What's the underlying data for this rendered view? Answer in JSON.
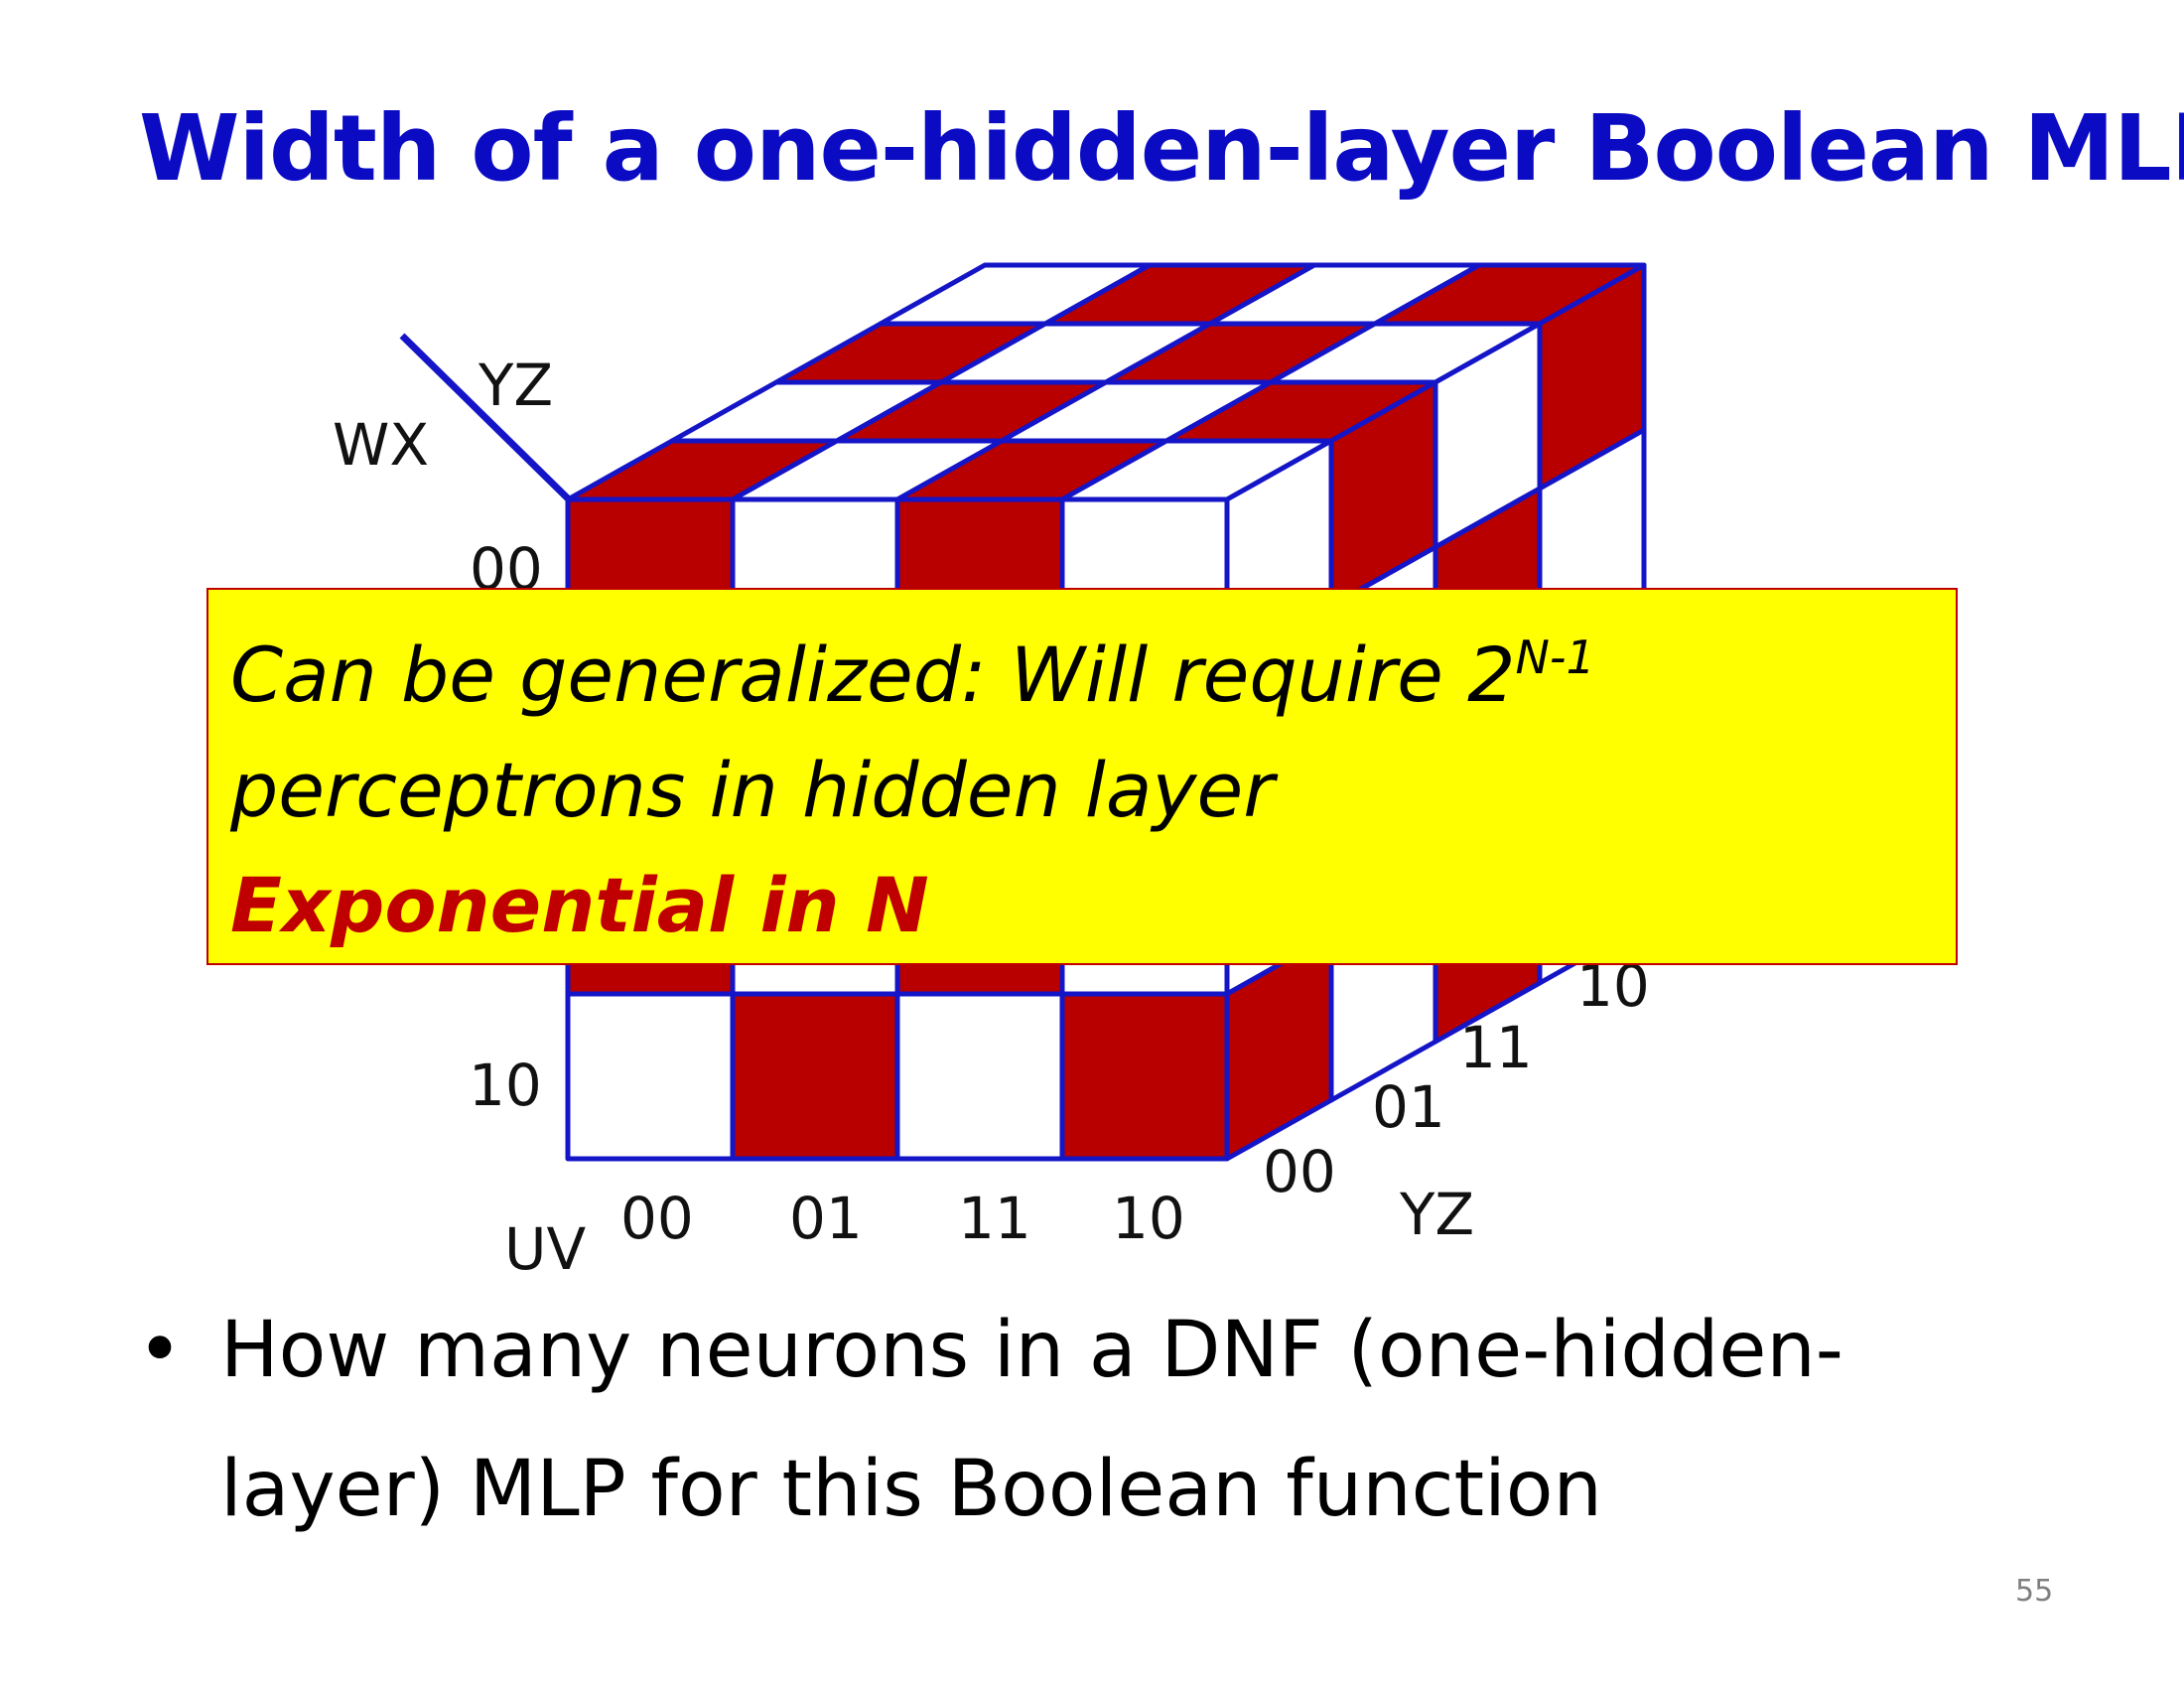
{
  "slide": {
    "title": "Width of a one-hidden-layer Boolean MLP",
    "page_number": "55"
  },
  "cube": {
    "colors": {
      "filled": "#b80000",
      "empty": "#ffffff",
      "grid_line": "#1515c8"
    },
    "labels": {
      "wx": "WX",
      "yz_top": "YZ",
      "uv": "UV",
      "yz_side": "YZ"
    },
    "row_labels": [
      "00",
      "10"
    ],
    "column_labels": [
      "00",
      "01",
      "11",
      "10"
    ],
    "depth_labels": [
      "00",
      "01",
      "11",
      "10"
    ]
  },
  "callout": {
    "line1": "Can be generalized: Will require 2",
    "line1_superscript": "N-1",
    "line2": "perceptrons in hidden layer",
    "line3": "Exponential  in N"
  },
  "bullet": {
    "marker": "•",
    "line1": "How many neurons in a DNF (one-hidden-",
    "line2": "layer) MLP for this Boolean function"
  }
}
